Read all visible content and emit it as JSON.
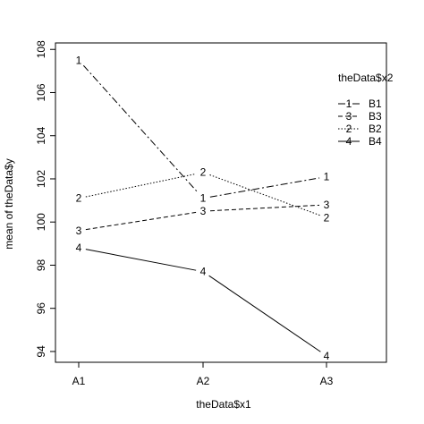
{
  "chart_data": {
    "type": "line",
    "title": "",
    "xlabel": "theData$x1",
    "ylabel": "mean of  theData$y",
    "categories": [
      "A1",
      "A2",
      "A3"
    ],
    "ylim": [
      93.5,
      108.3
    ],
    "yticks": [
      "94",
      "96",
      "98",
      "100",
      "102",
      "104",
      "106",
      "108"
    ],
    "legend": {
      "title": "theData$x2",
      "placement": "top-right",
      "entries": [
        {
          "symbol": "1",
          "label": "B1",
          "series": 0
        },
        {
          "symbol": "3",
          "label": "B3",
          "series": 2
        },
        {
          "symbol": "2",
          "label": "B2",
          "series": 1
        },
        {
          "symbol": "4",
          "label": "B4",
          "series": 3
        }
      ]
    },
    "series": [
      {
        "name": "B1",
        "symbol": "1",
        "dash": "8 3 2 3",
        "values": [
          107.5,
          101.1,
          102.1
        ]
      },
      {
        "name": "B2",
        "symbol": "2",
        "dash": "1.5 2",
        "values": [
          101.1,
          102.3,
          100.2
        ]
      },
      {
        "name": "B3",
        "symbol": "3",
        "dash": "5 3",
        "values": [
          99.6,
          100.5,
          100.8
        ]
      },
      {
        "name": "B4",
        "symbol": "4",
        "dash": "",
        "values": [
          98.8,
          97.7,
          93.8
        ]
      }
    ],
    "color": "#000000",
    "grid": false
  }
}
